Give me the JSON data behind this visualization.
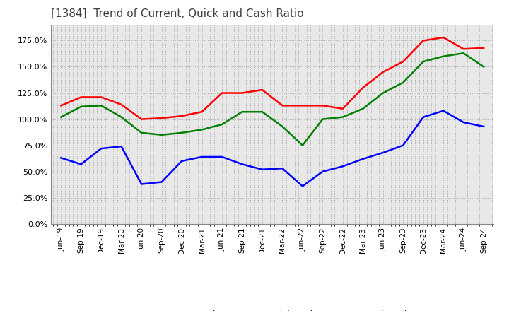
{
  "title": "[1384]  Trend of Current, Quick and Cash Ratio",
  "title_fontsize": 11,
  "title_color": "#404040",
  "background_color": "#ffffff",
  "plot_background": "#e8e8e8",
  "grid_color": "#aaaaaa",
  "legend_labels": [
    "Current Ratio",
    "Quick Ratio",
    "Cash Ratio"
  ],
  "legend_colors": [
    "#ff0000",
    "#008000",
    "#0000ff"
  ],
  "x_labels": [
    "Jun-19",
    "Sep-19",
    "Dec-19",
    "Mar-20",
    "Jun-20",
    "Sep-20",
    "Dec-20",
    "Mar-21",
    "Jun-21",
    "Sep-21",
    "Dec-21",
    "Mar-22",
    "Jun-22",
    "Sep-22",
    "Dec-22",
    "Mar-23",
    "Jun-23",
    "Sep-23",
    "Dec-23",
    "Mar-24",
    "Jun-24",
    "Sep-24"
  ],
  "current_ratio": [
    1.13,
    1.21,
    1.21,
    1.14,
    1.0,
    1.01,
    1.03,
    1.07,
    1.25,
    1.25,
    1.28,
    1.13,
    1.13,
    1.13,
    1.1,
    1.3,
    1.45,
    1.55,
    1.75,
    1.78,
    1.67,
    1.68
  ],
  "quick_ratio": [
    1.02,
    1.12,
    1.13,
    1.02,
    0.87,
    0.85,
    0.87,
    0.9,
    0.95,
    1.07,
    1.07,
    0.93,
    0.75,
    1.0,
    1.02,
    1.1,
    1.25,
    1.35,
    1.55,
    1.6,
    1.63,
    1.5
  ],
  "cash_ratio": [
    0.63,
    0.57,
    0.72,
    0.74,
    0.38,
    0.4,
    0.6,
    0.64,
    0.64,
    0.57,
    0.52,
    0.53,
    0.36,
    0.5,
    0.55,
    0.62,
    0.68,
    0.75,
    1.02,
    1.08,
    0.97,
    0.93
  ],
  "yticks": [
    0.0,
    0.25,
    0.5,
    0.75,
    1.0,
    1.25,
    1.5,
    1.75
  ],
  "ylim": [
    0.0,
    1.9
  ]
}
